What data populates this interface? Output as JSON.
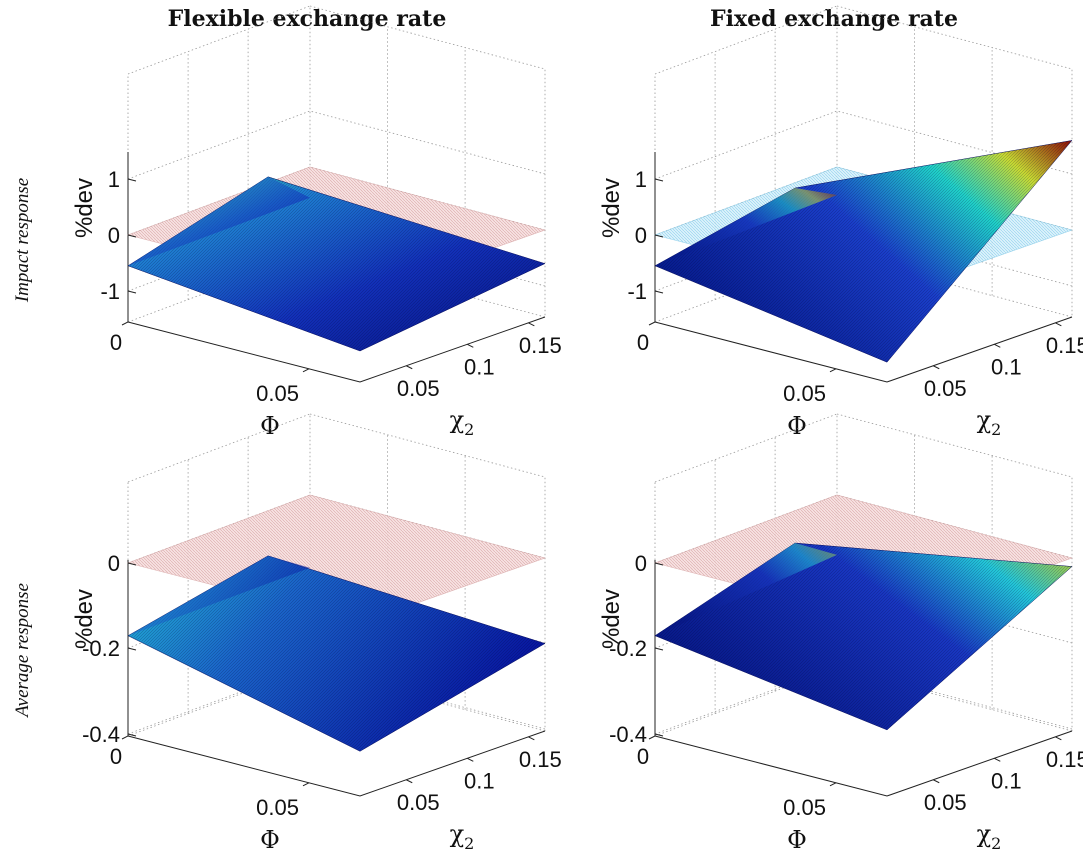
{
  "figure": {
    "column_titles": [
      "Flexible exchange rate",
      "Fixed exchange rate"
    ],
    "row_titles": [
      "Impact response",
      "Average response"
    ]
  },
  "colors": {
    "reference_plane_pink": "#e8b4b4",
    "reference_plane_blue": "#9fd8f2",
    "surface_colormap": "jet"
  },
  "chart_data": [
    {
      "type": "surface",
      "title": "Flexible exchange rate",
      "row": "Impact response",
      "zlabel": "%dev",
      "xlabel": "Φ",
      "ylabel": "χ",
      "ylabel_subscript": "2",
      "zlim": [
        -1.5,
        1.5
      ],
      "zticks": [
        "-1",
        "0",
        "1"
      ],
      "xticks": [
        "0",
        "0.05"
      ],
      "yticks": [
        "0.05",
        "0.1",
        "0.15"
      ],
      "reference_plane": {
        "z": 0,
        "color": "pink"
      },
      "surface_corners": {
        "phi0_chi0": -0.55,
        "phi0_chimax": -0.55,
        "phimax_chi0": -1.0,
        "phimax_chimax": -0.6,
        "ridge": 0.3
      },
      "peak_value": 0.3
    },
    {
      "type": "surface",
      "title": "Fixed exchange rate",
      "row": "Impact response",
      "zlabel": "%dev",
      "xlabel": "Φ",
      "ylabel": "χ",
      "ylabel_subscript": "2",
      "zlim": [
        -1.5,
        1.5
      ],
      "zticks": [
        "-1",
        "0",
        "1"
      ],
      "xticks": [
        "0",
        "0.05"
      ],
      "yticks": [
        "0.05",
        "0.1",
        "0.15"
      ],
      "reference_plane": {
        "z": 0,
        "color": "blue"
      },
      "surface_corners": {
        "phi0_chi0": -0.55,
        "phi0_chimax": -0.5,
        "phimax_chi0": -1.2,
        "phimax_chimax": 1.6,
        "ridge": 0.1
      },
      "peak_value": 1.6
    },
    {
      "type": "surface",
      "title": "Flexible exchange rate",
      "row": "Average response",
      "zlabel": "%dev",
      "xlabel": "Φ",
      "ylabel": "χ",
      "ylabel_subscript": "2",
      "zlim": [
        -0.4,
        0.05
      ],
      "zticks": [
        "-0.4",
        "-0.2",
        "0"
      ],
      "xticks": [
        "0",
        "0.05"
      ],
      "yticks": [
        "0.05",
        "0.1",
        "0.15"
      ],
      "reference_plane": {
        "z": 0,
        "color": "pink"
      },
      "surface_corners": {
        "phi0_chi0": -0.17,
        "phi0_chimax": -0.17,
        "phimax_chi0": -0.3,
        "phimax_chimax": -0.2,
        "ridge": -0.08
      },
      "peak_value": -0.08
    },
    {
      "type": "surface",
      "title": "Fixed exchange rate",
      "row": "Average response",
      "zlabel": "%dev",
      "xlabel": "Φ",
      "ylabel": "χ",
      "ylabel_subscript": "2",
      "zlim": [
        -0.4,
        0.05
      ],
      "zticks": [
        "-0.4",
        "-0.2",
        "0"
      ],
      "xticks": [
        "0",
        "0.05"
      ],
      "yticks": [
        "0.05",
        "0.1",
        "0.15"
      ],
      "reference_plane": {
        "z": 0,
        "color": "pink"
      },
      "surface_corners": {
        "phi0_chi0": -0.17,
        "phi0_chimax": -0.14,
        "phimax_chi0": -0.25,
        "phimax_chimax": -0.02,
        "ridge": -0.05
      },
      "peak_value": -0.02
    }
  ]
}
